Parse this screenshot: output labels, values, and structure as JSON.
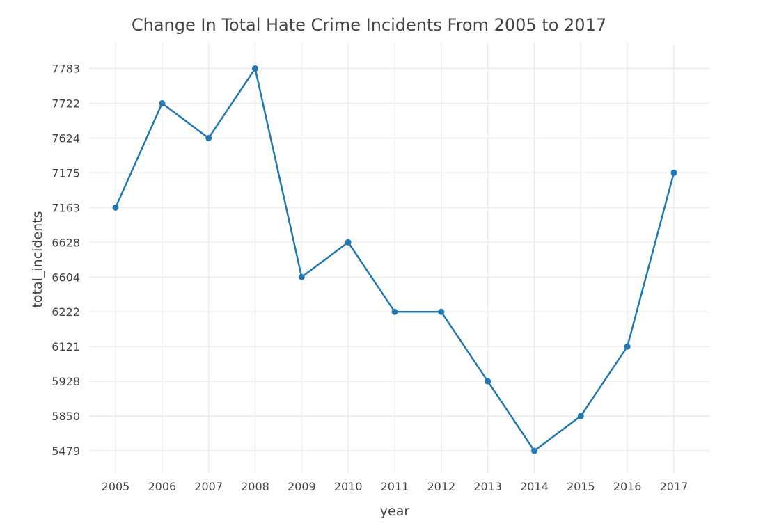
{
  "chart_data": {
    "type": "line",
    "title": "Change In Total Hate Crime Incidents From 2005 to 2017",
    "xlabel": "year",
    "ylabel": "total_incidents",
    "y_axis_type": "category",
    "y_tick_labels": [
      "5479",
      "5850",
      "5928",
      "6121",
      "6222",
      "6604",
      "6628",
      "7163",
      "7175",
      "7624",
      "7722",
      "7783"
    ],
    "grid": true,
    "series": [
      {
        "color": "#1f77b4",
        "x": [
          "2005",
          "2006",
          "2007",
          "2008",
          "2009",
          "2010",
          "2011",
          "2012",
          "2013",
          "2014",
          "2015",
          "2016",
          "2017"
        ],
        "y": [
          "7163",
          "7722",
          "7624",
          "7783",
          "6604",
          "6628",
          "6222",
          "6222",
          "5928",
          "5479",
          "5850",
          "6121",
          "7175"
        ]
      }
    ]
  }
}
